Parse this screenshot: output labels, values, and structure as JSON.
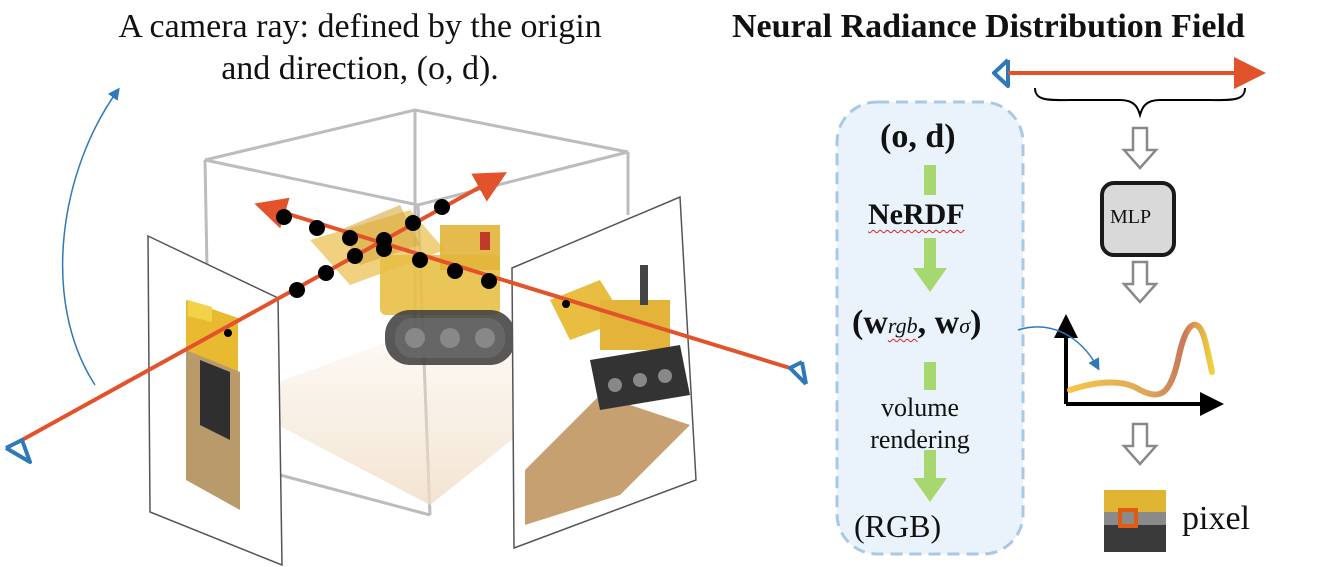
{
  "caption": "A camera ray: defined by the origin and direction, (o, d).",
  "title": "Neural Radiance Distribution Field",
  "flow": {
    "input": "(o, d)",
    "model": "NeRDF",
    "weights_open": "(",
    "w_rgb": "w",
    "w_rgb_sub": "rgb",
    "sep": ", ",
    "w_sigma": "w",
    "w_sigma_sub": "σ",
    "weights_close": ")",
    "rendering": "volume rendering",
    "output": "(RGB)"
  },
  "mlp_label": "MLP",
  "pixel_label": "pixel",
  "colors": {
    "ray": "#e2522b",
    "camera": "#2f79b8",
    "panel_fill": "#eaf3fb",
    "panel_border": "#a9c8e6",
    "flow_arrow": "#a7d86f",
    "box_line": "#bcbcbc",
    "mlp_fill": "#d9d9d9",
    "curve_start": "#f7c447",
    "curve_end": "#c9785b"
  }
}
